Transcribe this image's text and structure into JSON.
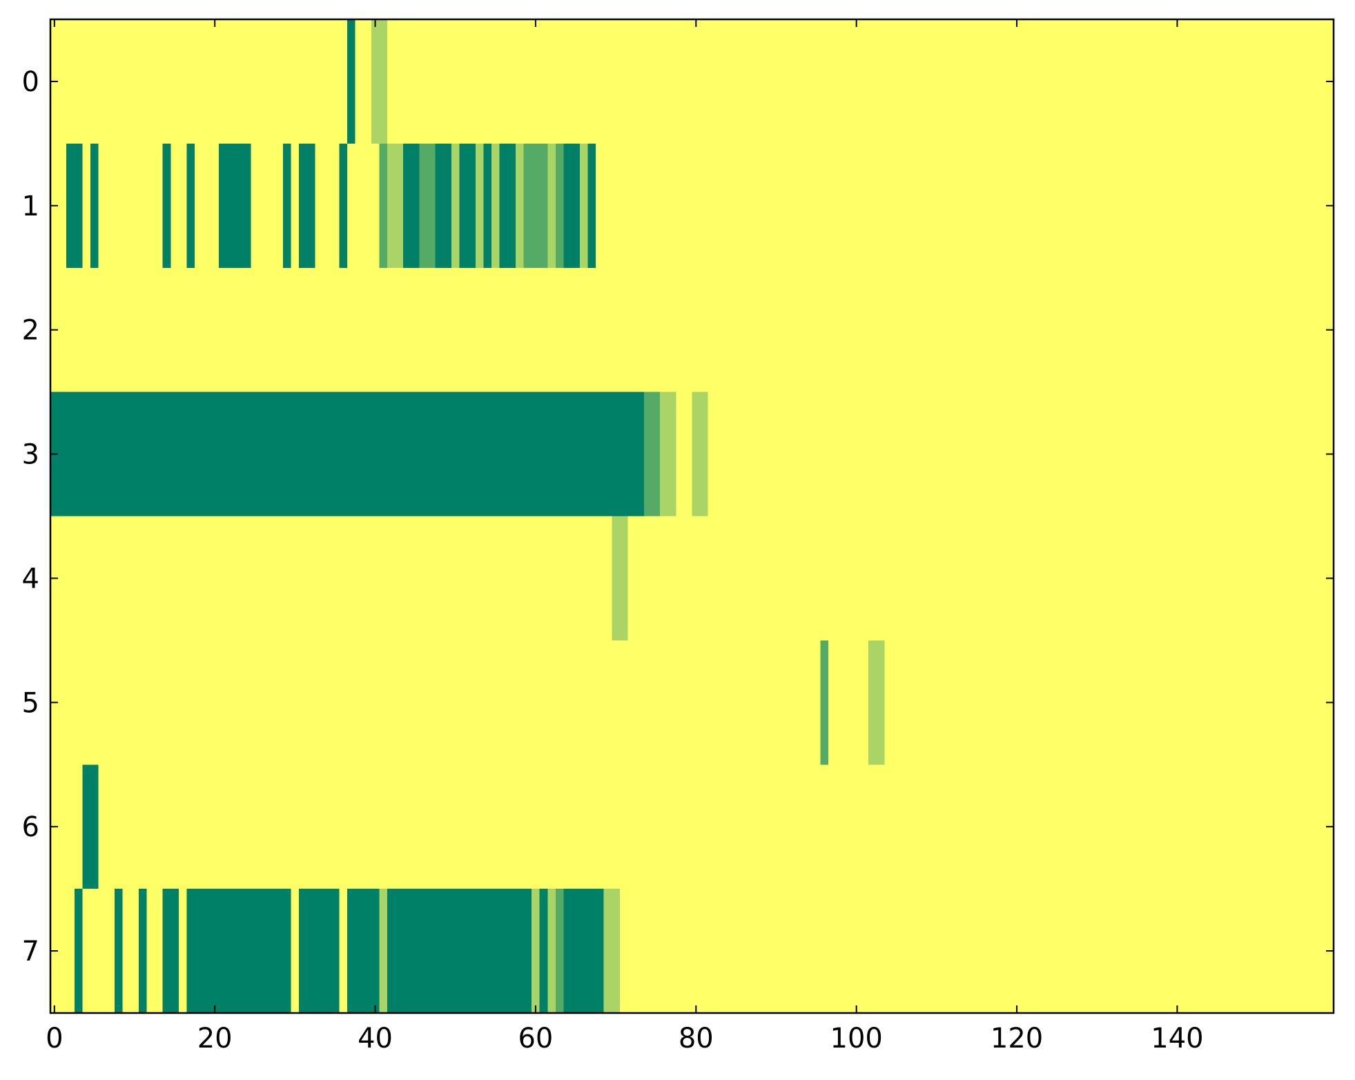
{
  "chart_data": {
    "type": "heatmap",
    "colormap": "summer",
    "clim": [
      0,
      3
    ],
    "xlim": [
      -0.5,
      159.5
    ],
    "ylim": [
      7.5,
      -0.5
    ],
    "xticks": [
      0,
      20,
      40,
      60,
      80,
      100,
      120,
      140
    ],
    "yticks": [
      0,
      1,
      2,
      3,
      4,
      5,
      6,
      7
    ],
    "z": [
      [
        3,
        3,
        3,
        3,
        3,
        3,
        3,
        3,
        3,
        3,
        3,
        3,
        3,
        3,
        3,
        3,
        3,
        3,
        3,
        3,
        3,
        3,
        3,
        3,
        3,
        3,
        3,
        3,
        3,
        3,
        3,
        3,
        3,
        3,
        3,
        3,
        3,
        0,
        3,
        3,
        2,
        2,
        3,
        3,
        3,
        3,
        3,
        3,
        3,
        3,
        3,
        3,
        3,
        3,
        3,
        3,
        3,
        3,
        3,
        3,
        3,
        3,
        3,
        3,
        3,
        3,
        3,
        3,
        3,
        3,
        3,
        3,
        3,
        3,
        3,
        3,
        3,
        3,
        3,
        3,
        3,
        3,
        3,
        3,
        3,
        3,
        3,
        3,
        3,
        3,
        3,
        3,
        3,
        3,
        3,
        3,
        3,
        3,
        3,
        3,
        3,
        3,
        3,
        3,
        3,
        3,
        3,
        3,
        3,
        3,
        3,
        3,
        3,
        3,
        3,
        3,
        3,
        3,
        3,
        3,
        3,
        3,
        3,
        3,
        3,
        3,
        3,
        3,
        3,
        3,
        3,
        3,
        3,
        3,
        3,
        3,
        3,
        3,
        3,
        3,
        3,
        3,
        3,
        3,
        3,
        3,
        3,
        3,
        3,
        3,
        3,
        3,
        3,
        3,
        3,
        3,
        3,
        3,
        3,
        3
      ],
      [
        3,
        3,
        0,
        0,
        3,
        0,
        3,
        3,
        3,
        3,
        3,
        3,
        3,
        3,
        0,
        3,
        3,
        0,
        3,
        3,
        3,
        0,
        0,
        0,
        0,
        3,
        3,
        3,
        3,
        0,
        3,
        0,
        0,
        3,
        3,
        3,
        0,
        3,
        3,
        3,
        3,
        1,
        2,
        2,
        0,
        0,
        1,
        1,
        0,
        0,
        2,
        0,
        0,
        2,
        0,
        2,
        0,
        0,
        2,
        1,
        1,
        1,
        2,
        1,
        0,
        0,
        2,
        0,
        3,
        3,
        3,
        3,
        3,
        3,
        3,
        3,
        3,
        3,
        3,
        3,
        3,
        3,
        3,
        3,
        3,
        3,
        3,
        3,
        3,
        3,
        3,
        3,
        3,
        3,
        3,
        3,
        3,
        3,
        3,
        3,
        3,
        3,
        3,
        3,
        3,
        3,
        3,
        3,
        3,
        3,
        3,
        3,
        3,
        3,
        3,
        3,
        3,
        3,
        3,
        3,
        3,
        3,
        3,
        3,
        3,
        3,
        3,
        3,
        3,
        3,
        3,
        3,
        3,
        3,
        3,
        3,
        3,
        3,
        3,
        3,
        3,
        3,
        3,
        3,
        3,
        3,
        3,
        3,
        3,
        3,
        3,
        3,
        3,
        3,
        3,
        3,
        3,
        3,
        3,
        3
      ],
      [
        3,
        3,
        3,
        3,
        3,
        3,
        3,
        3,
        3,
        3,
        3,
        3,
        3,
        3,
        3,
        3,
        3,
        3,
        3,
        3,
        3,
        3,
        3,
        3,
        3,
        3,
        3,
        3,
        3,
        3,
        3,
        3,
        3,
        3,
        3,
        3,
        3,
        3,
        3,
        3,
        3,
        3,
        3,
        3,
        3,
        3,
        3,
        3,
        3,
        3,
        3,
        3,
        3,
        3,
        3,
        3,
        3,
        3,
        3,
        3,
        3,
        3,
        3,
        3,
        3,
        3,
        3,
        3,
        3,
        3,
        3,
        3,
        3,
        3,
        3,
        3,
        3,
        3,
        3,
        3,
        3,
        3,
        3,
        3,
        3,
        3,
        3,
        3,
        3,
        3,
        3,
        3,
        3,
        3,
        3,
        3,
        3,
        3,
        3,
        3,
        3,
        3,
        3,
        3,
        3,
        3,
        3,
        3,
        3,
        3,
        3,
        3,
        3,
        3,
        3,
        3,
        3,
        3,
        3,
        3,
        3,
        3,
        3,
        3,
        3,
        3,
        3,
        3,
        3,
        3,
        3,
        3,
        3,
        3,
        3,
        3,
        3,
        3,
        3,
        3,
        3,
        3,
        3,
        3,
        3,
        3,
        3,
        3,
        3,
        3,
        3,
        3,
        3,
        3,
        3,
        3,
        3,
        3,
        3,
        3
      ],
      [
        0,
        0,
        0,
        0,
        0,
        0,
        0,
        0,
        0,
        0,
        0,
        0,
        0,
        0,
        0,
        0,
        0,
        0,
        0,
        0,
        0,
        0,
        0,
        0,
        0,
        0,
        0,
        0,
        0,
        0,
        0,
        0,
        0,
        0,
        0,
        0,
        0,
        0,
        0,
        0,
        0,
        0,
        0,
        0,
        0,
        0,
        0,
        0,
        0,
        0,
        0,
        0,
        0,
        0,
        0,
        0,
        0,
        0,
        0,
        0,
        0,
        0,
        0,
        0,
        0,
        0,
        0,
        0,
        0,
        0,
        0,
        0,
        0,
        0,
        1,
        1,
        2,
        2,
        3,
        3,
        2,
        2,
        3,
        3,
        3,
        3,
        3,
        3,
        3,
        3,
        3,
        3,
        3,
        3,
        3,
        3,
        3,
        3,
        3,
        3,
        3,
        3,
        3,
        3,
        3,
        3,
        3,
        3,
        3,
        3,
        3,
        3,
        3,
        3,
        3,
        3,
        3,
        3,
        3,
        3,
        3,
        3,
        3,
        3,
        3,
        3,
        3,
        3,
        3,
        3,
        3,
        3,
        3,
        3,
        3,
        3,
        3,
        3,
        3,
        3,
        3,
        3,
        3,
        3,
        3,
        3,
        3,
        3,
        3,
        3,
        3,
        3,
        3,
        3,
        3,
        3,
        3,
        3,
        3,
        3
      ],
      [
        3,
        3,
        3,
        3,
        3,
        3,
        3,
        3,
        3,
        3,
        3,
        3,
        3,
        3,
        3,
        3,
        3,
        3,
        3,
        3,
        3,
        3,
        3,
        3,
        3,
        3,
        3,
        3,
        3,
        3,
        3,
        3,
        3,
        3,
        3,
        3,
        3,
        3,
        3,
        3,
        3,
        3,
        3,
        3,
        3,
        3,
        3,
        3,
        3,
        3,
        3,
        3,
        3,
        3,
        3,
        3,
        3,
        3,
        3,
        3,
        3,
        3,
        3,
        3,
        3,
        3,
        3,
        3,
        3,
        3,
        2,
        2,
        3,
        3,
        3,
        3,
        3,
        3,
        3,
        3,
        3,
        3,
        3,
        3,
        3,
        3,
        3,
        3,
        3,
        3,
        3,
        3,
        3,
        3,
        3,
        3,
        3,
        3,
        3,
        3,
        3,
        3,
        3,
        3,
        3,
        3,
        3,
        3,
        3,
        3,
        3,
        3,
        3,
        3,
        3,
        3,
        3,
        3,
        3,
        3,
        3,
        3,
        3,
        3,
        3,
        3,
        3,
        3,
        3,
        3,
        3,
        3,
        3,
        3,
        3,
        3,
        3,
        3,
        3,
        3,
        3,
        3,
        3,
        3,
        3,
        3,
        3,
        3,
        3,
        3,
        3,
        3,
        3,
        3,
        3,
        3,
        3,
        3,
        3,
        3
      ],
      [
        3,
        3,
        3,
        3,
        3,
        3,
        3,
        3,
        3,
        3,
        3,
        3,
        3,
        3,
        3,
        3,
        3,
        3,
        3,
        3,
        3,
        3,
        3,
        3,
        3,
        3,
        3,
        3,
        3,
        3,
        3,
        3,
        3,
        3,
        3,
        3,
        3,
        3,
        3,
        3,
        3,
        3,
        3,
        3,
        3,
        3,
        3,
        3,
        3,
        3,
        3,
        3,
        3,
        3,
        3,
        3,
        3,
        3,
        3,
        3,
        3,
        3,
        3,
        3,
        3,
        3,
        3,
        3,
        3,
        3,
        3,
        3,
        3,
        3,
        3,
        3,
        3,
        3,
        3,
        3,
        3,
        3,
        3,
        3,
        3,
        3,
        3,
        3,
        3,
        3,
        3,
        3,
        3,
        3,
        3,
        3,
        1,
        3,
        3,
        3,
        3,
        3,
        2,
        2,
        3,
        3,
        3,
        3,
        3,
        3,
        3,
        3,
        3,
        3,
        3,
        3,
        3,
        3,
        3,
        3,
        3,
        3,
        3,
        3,
        3,
        3,
        3,
        3,
        3,
        3,
        3,
        3,
        3,
        3,
        3,
        3,
        3,
        3,
        3,
        3,
        3,
        3,
        3,
        3,
        3,
        3,
        3,
        3,
        3,
        3,
        3,
        3,
        3,
        3,
        3,
        3,
        3,
        3,
        3,
        3
      ],
      [
        3,
        3,
        3,
        3,
        0,
        0,
        3,
        3,
        3,
        3,
        3,
        3,
        3,
        3,
        3,
        3,
        3,
        3,
        3,
        3,
        3,
        3,
        3,
        3,
        3,
        3,
        3,
        3,
        3,
        3,
        3,
        3,
        3,
        3,
        3,
        3,
        3,
        3,
        3,
        3,
        3,
        3,
        3,
        3,
        3,
        3,
        3,
        3,
        3,
        3,
        3,
        3,
        3,
        3,
        3,
        3,
        3,
        3,
        3,
        3,
        3,
        3,
        3,
        3,
        3,
        3,
        3,
        3,
        3,
        3,
        3,
        3,
        3,
        3,
        3,
        3,
        3,
        3,
        3,
        3,
        3,
        3,
        3,
        3,
        3,
        3,
        3,
        3,
        3,
        3,
        3,
        3,
        3,
        3,
        3,
        3,
        3,
        3,
        3,
        3,
        3,
        3,
        3,
        3,
        3,
        3,
        3,
        3,
        3,
        3,
        3,
        3,
        3,
        3,
        3,
        3,
        3,
        3,
        3,
        3,
        3,
        3,
        3,
        3,
        3,
        3,
        3,
        3,
        3,
        3,
        3,
        3,
        3,
        3,
        3,
        3,
        3,
        3,
        3,
        3,
        3,
        3,
        3,
        3,
        3,
        3,
        3,
        3,
        3,
        3,
        3,
        3,
        3,
        3,
        3,
        3,
        3,
        3,
        3,
        3
      ],
      [
        3,
        3,
        3,
        0,
        3,
        3,
        3,
        3,
        0,
        3,
        3,
        0,
        3,
        3,
        0,
        0,
        3,
        0,
        0,
        0,
        0,
        0,
        0,
        0,
        0,
        0,
        0,
        0,
        0,
        0,
        3,
        0,
        0,
        0,
        0,
        0,
        3,
        0,
        0,
        0,
        0,
        2,
        0,
        0,
        0,
        0,
        0,
        0,
        0,
        0,
        0,
        0,
        0,
        0,
        0,
        0,
        0,
        0,
        0,
        0,
        2,
        0,
        2,
        1,
        0,
        0,
        0,
        0,
        0,
        2,
        2,
        3,
        3,
        3,
        3,
        3,
        3,
        3,
        3,
        3,
        3,
        3,
        3,
        3,
        3,
        3,
        3,
        3,
        3,
        3,
        3,
        3,
        3,
        3,
        3,
        3,
        3,
        3,
        3,
        3,
        3,
        3,
        3,
        3,
        3,
        3,
        3,
        3,
        3,
        3,
        3,
        3,
        3,
        3,
        3,
        3,
        3,
        3,
        3,
        3,
        3,
        3,
        3,
        3,
        3,
        3,
        3,
        3,
        3,
        3,
        3,
        3,
        3,
        3,
        3,
        3,
        3,
        3,
        3,
        3,
        3,
        3,
        3,
        3,
        3,
        3,
        3,
        3,
        3,
        3,
        3,
        3,
        3,
        3,
        3,
        3,
        3,
        3,
        3,
        3
      ]
    ]
  }
}
